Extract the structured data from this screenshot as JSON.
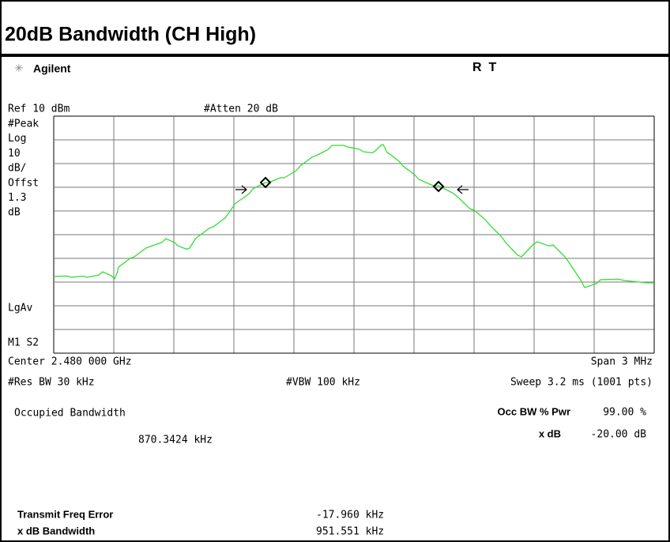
{
  "header": {
    "title": "20dB Bandwidth (CH High)"
  },
  "instrument": {
    "brand": "Agilent",
    "status": "R  T"
  },
  "top": {
    "ref": "Ref 10 dBm",
    "atten": "#Atten 20 dB"
  },
  "left_labels": [
    "#Peak",
    "Log",
    "10",
    "dB/",
    "Offst",
    "1.3",
    "dB"
  ],
  "left_lower": [
    "LgAv",
    "M1 S2"
  ],
  "bottom": {
    "center": "Center 2.480 000 GHz",
    "span": "Span 3 MHz",
    "rbw": "#Res BW 30 kHz",
    "vbw": "#VBW 100 kHz",
    "sweep": "Sweep 3.2 ms (1001 pts)"
  },
  "results": {
    "heading": "Occupied Bandwidth",
    "value": "870.3424 kHz",
    "occ_label": "Occ BW % Pwr",
    "occ_value": "99.00 %",
    "xdb_label": "x dB",
    "xdb_value": "-20.00 dB",
    "tfe_label": "Transmit Freq Error",
    "tfe_value": "-17.960 kHz",
    "xbw_label": "x dB Bandwidth",
    "xbw_value": "951.551 kHz"
  }
}
